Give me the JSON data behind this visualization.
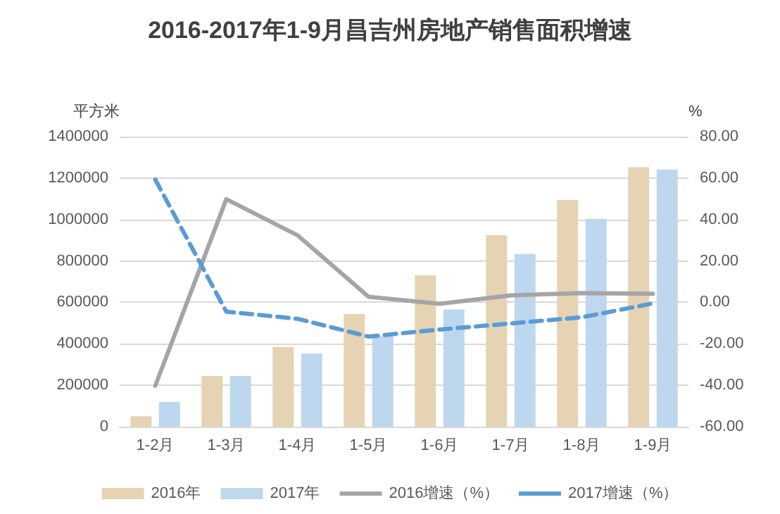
{
  "chart_data": {
    "type": "bar",
    "title": "2016-2017年1-9月昌吉州房地产销售面积增速",
    "categories": [
      "1-2月",
      "1-3月",
      "1-4月",
      "1-5月",
      "1-6月",
      "1-7月",
      "1-8月",
      "1-9月"
    ],
    "series": [
      {
        "name": "2016年",
        "color": "#e6d3b3",
        "values": [
          50000,
          245000,
          385000,
          544000,
          731000,
          924000,
          1094000,
          1252000
        ]
      },
      {
        "name": "2017年",
        "color": "#bdd7ee",
        "values": [
          120000,
          245000,
          353000,
          437000,
          566000,
          833000,
          1003000,
          1241000
        ]
      },
      {
        "name": "2016增速（%）",
        "type": "line",
        "axis": "y2",
        "color": "#a5a5a5",
        "line_style": "solid",
        "values": [
          -40.3,
          49.8,
          32.4,
          2.7,
          -0.7,
          3.4,
          4.5,
          4.1
        ]
      },
      {
        "name": "2017增速（%）",
        "type": "line",
        "axis": "y2",
        "color": "#5b9bd5",
        "line_style": "dashed",
        "values": [
          59.3,
          -4.5,
          -7.9,
          -16.5,
          -13.1,
          -10.2,
          -7.2,
          -0.5
        ]
      }
    ],
    "ylabel": "平方米",
    "y2label": "%",
    "ylim": [
      0,
      1400000
    ],
    "yticks": [
      0,
      200000,
      400000,
      600000,
      800000,
      1000000,
      1200000,
      1400000
    ],
    "y2lim": [
      -60,
      80
    ],
    "y2ticks": [
      {
        "value": -60,
        "label": "-60.00"
      },
      {
        "value": -40,
        "label": "-40.00"
      },
      {
        "value": -20,
        "label": "-20.00"
      },
      {
        "value": 0,
        "label": "0.00"
      },
      {
        "value": 20,
        "label": "20.00"
      },
      {
        "value": 40,
        "label": "40.00"
      },
      {
        "value": 60,
        "label": "60.00"
      },
      {
        "value": 80,
        "label": "80.00"
      }
    ],
    "grid": "y",
    "legend": "bottom",
    "marker": "none"
  }
}
